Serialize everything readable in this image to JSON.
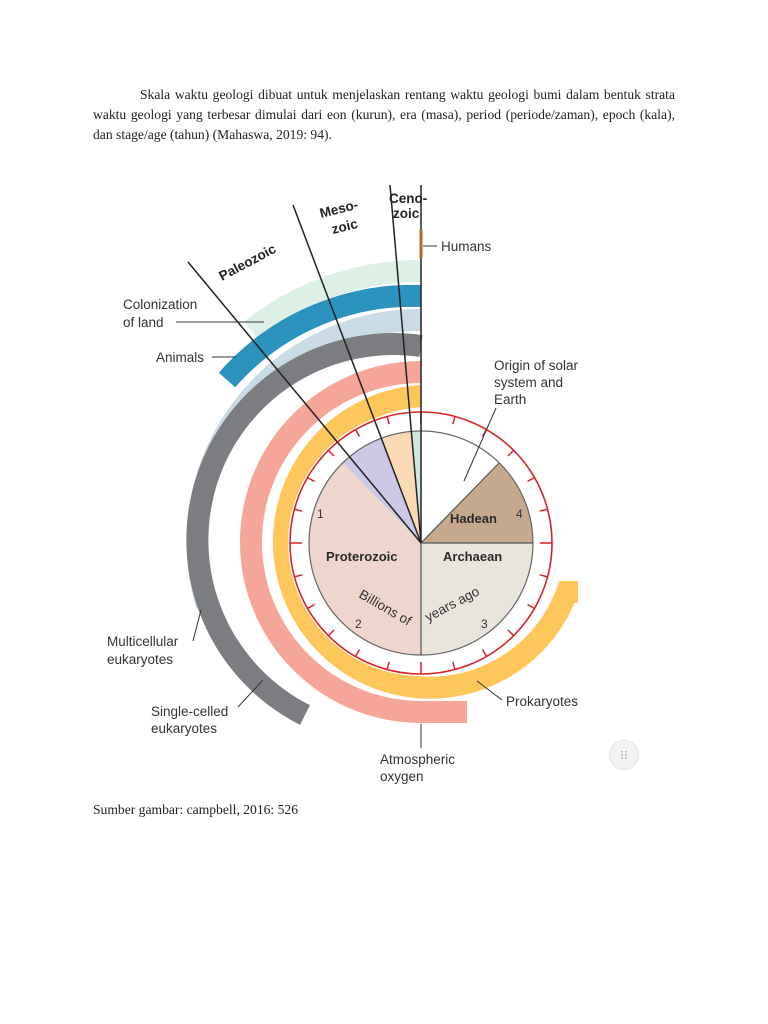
{
  "document": {
    "paragraph": "Skala waktu geologi dibuat untuk menjelaskan rentang waktu geologi bumi dalam bentuk strata waktu geologi yang terbesar dimulai dari eon (kurun), era (masa), period (periode/zaman), epoch (kala), dan stage/age (tahun) (Mahaswa, 2019: 94).",
    "caption": "Sumber gambar: campbell, 2016: 526"
  },
  "figure": {
    "eras": {
      "paleozoic": "Paleozoic",
      "mesozoic_line1": "Meso-",
      "mesozoic_line2": "zoic",
      "cenozoic_line1": "Ceno-",
      "cenozoic_line2": "zoic"
    },
    "labels": {
      "humans": "Humans",
      "colonization_line1": "Colonization",
      "colonization_line2": "of land",
      "animals": "Animals",
      "origin_line1": "Origin of solar",
      "origin_line2": "system and",
      "origin_line3": "Earth",
      "multicellular_line1": "Multicellular",
      "multicellular_line2": "eukaryotes",
      "single_celled_line1": "Single-celled",
      "single_celled_line2": "eukaryotes",
      "prokaryotes": "Prokaryotes",
      "oxygen_line1": "Atmospheric",
      "oxygen_line2": "oxygen"
    },
    "eons": {
      "hadean": "Hadean",
      "archaean": "Archaean",
      "proterozoic": "Proterozoic"
    },
    "axis_label_part1": "Billions of",
    "axis_label_part2": "years ago",
    "tick_numbers": [
      "1",
      "2",
      "3",
      "4"
    ],
    "colors": {
      "proterozoic": "#efd6cc",
      "archaean": "#e9e5dd",
      "hadean": "#c6a98c",
      "paleozoic": "#cdc8e6",
      "mesozoic": "#fbd9b4",
      "cenozoic": "#cfe8df",
      "red_ring": "#d8232a",
      "prokaryotes": "#fdc75c",
      "oxygen": "#f6a699",
      "single_celled": "#7c7d80",
      "multicellular": "#c9dbe4",
      "animals": "#2b93bd",
      "land": "#ddf0e6",
      "humans": "#b0692a"
    }
  },
  "ui": {
    "fab_icon": "collapse-icon",
    "fab_glyph": "⁝⁝"
  }
}
